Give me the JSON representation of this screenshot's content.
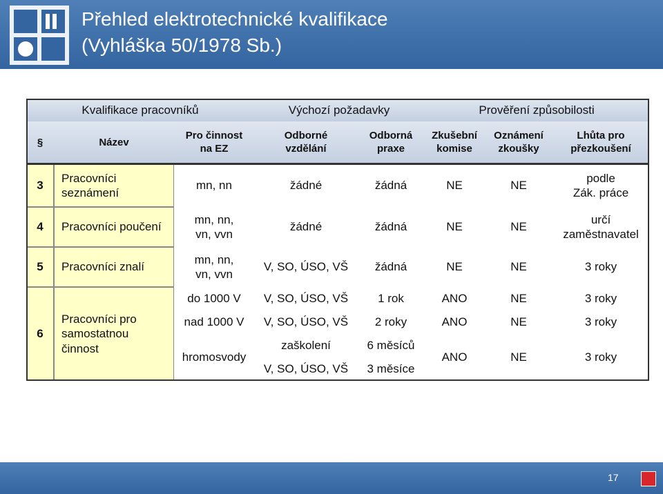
{
  "header": {
    "title": "Přehled elektrotechnické kvalifikace",
    "subtitle": "(Vyhláška 50/1978 Sb.)"
  },
  "table": {
    "groups": [
      "Kvalifikace pracovníků",
      "Výchozí požadavky",
      "Prověření způsobilosti"
    ],
    "columns": [
      "§",
      "Název",
      "Pro činnost\nna EZ",
      "Odborné\nvzdělání",
      "Odborná\npraxe",
      "Zkušební\nkomise",
      "Oznámení\nzkoušky",
      "Lhůta pro\npřezkoušení"
    ],
    "rows": [
      {
        "number": "3",
        "name": "Pracovníci\nseznámení",
        "activity": "mn, nn",
        "education": "žádné",
        "practice": "žádná",
        "commission": "NE",
        "notice": "NE",
        "deadline": "podle\nZák. práce"
      },
      {
        "number": "4",
        "name": "Pracovníci poučení",
        "activity": "mn, nn,\nvn, vvn",
        "education": "žádné",
        "practice": "žádná",
        "commission": "NE",
        "notice": "NE",
        "deadline": "určí\nzaměstnavatel"
      },
      {
        "number": "5",
        "name": "Pracovníci znalí",
        "activity": "mn, nn,\nvn, vvn",
        "education": "V, SO, ÚSO, VŠ",
        "practice": "žádná",
        "commission": "NE",
        "notice": "NE",
        "deadline": "3 roky"
      },
      {
        "number": "6",
        "name": "Pracovníci pro\nsamostatnou\nčinnost",
        "subrows": [
          {
            "activity": "do 1000 V",
            "education": "V, SO, ÚSO, VŠ",
            "practice": "1 rok",
            "commission": "ANO",
            "notice": "NE",
            "deadline": "3 roky"
          },
          {
            "activity": "nad 1000 V",
            "education": "V, SO, ÚSO, VŠ",
            "practice": "2 roky",
            "commission": "ANO",
            "notice": "NE",
            "deadline": "3 roky"
          },
          {
            "activity": "hromosvody",
            "options": [
              {
                "education": "zaškolení",
                "practice": "6 měsíců"
              },
              {
                "education": "V, SO, ÚSO, VŠ",
                "practice": "3 měsíce"
              }
            ],
            "commission": "ANO",
            "notice": "NE",
            "deadline": "3 roky"
          }
        ]
      }
    ]
  },
  "footer": {
    "page": "17"
  }
}
